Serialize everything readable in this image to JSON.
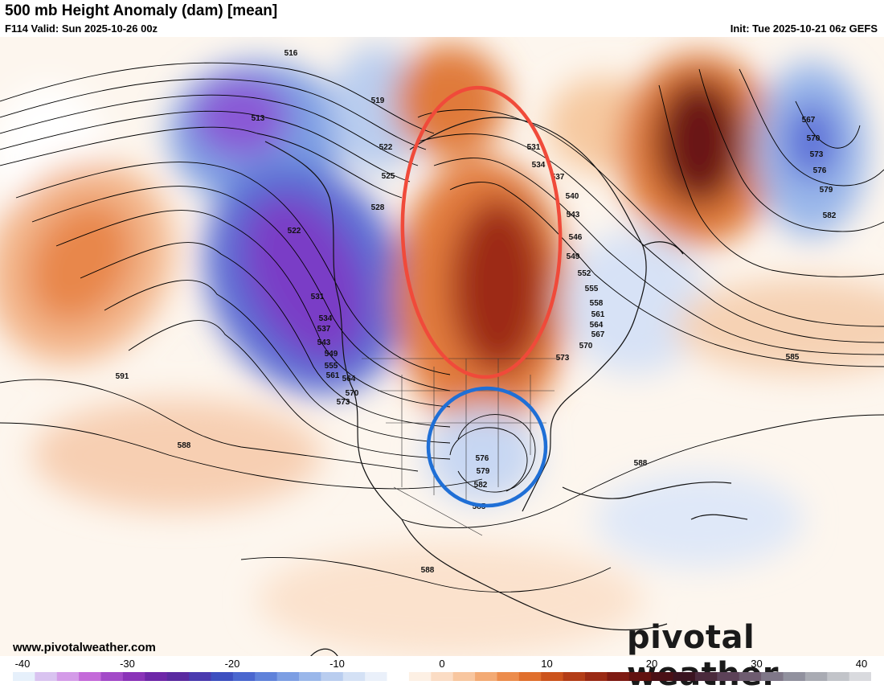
{
  "header": {
    "title": "500 mb Height Anomaly (dam) [mean]",
    "valid": "F114 Valid: Sun 2025-10-26 00z",
    "init": "Init: Tue 2025-10-21 06z GEFS"
  },
  "footer": {
    "website": "www.pivotalweather.com",
    "logo_text": "pivotal weather"
  },
  "colorbar": {
    "ticks": [
      "-40",
      "-30",
      "-20",
      "-10",
      "0",
      "10",
      "20",
      "30",
      "40"
    ],
    "colors": [
      "#e6f0fb",
      "#d9c3f0",
      "#d49be8",
      "#c46ad9",
      "#a34ac8",
      "#8a33b8",
      "#6e27a8",
      "#5a2aa0",
      "#4a3aaf",
      "#3d4fc0",
      "#4a67cf",
      "#5f82da",
      "#7c9ee3",
      "#9ab7ea",
      "#b9cdef",
      "#d4e1f5",
      "#eaf0fa",
      "#ffffff",
      "#fdf0e4",
      "#fbdcc4",
      "#f8c69f",
      "#f3aa74",
      "#ec8c4c",
      "#e06f2d",
      "#cc531c",
      "#b33d17",
      "#9a2a14",
      "#7e1a12",
      "#621210",
      "#4a1016",
      "#3a1420",
      "#4a2a3c",
      "#5c4258",
      "#6e5c70",
      "#7f7788",
      "#91919e",
      "#a9abb3",
      "#c2c4c9",
      "#d9dade"
    ]
  },
  "contour_labels": [
    "516",
    "513",
    "519",
    "522",
    "525",
    "528",
    "522",
    "531",
    "534",
    "537",
    "543",
    "549",
    "555",
    "561",
    "564",
    "570",
    "573",
    "531",
    "534",
    "537",
    "540",
    "543",
    "546",
    "549",
    "552",
    "555",
    "558",
    "561",
    "564",
    "567",
    "570",
    "573",
    "591",
    "588",
    "576",
    "579",
    "582",
    "585",
    "588",
    "588",
    "585",
    "567",
    "570",
    "573",
    "576",
    "579",
    "582"
  ],
  "annotations": {
    "red_ellipse_color": "#f04a3a",
    "blue_circle_color": "#1f6fd6"
  }
}
